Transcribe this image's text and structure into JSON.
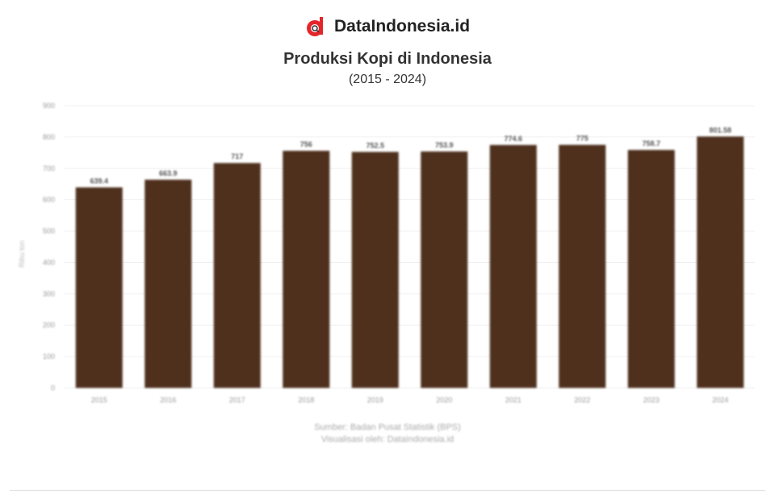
{
  "brand": {
    "name": "DataIndonesia.id",
    "accent": "#e4262b"
  },
  "chart_data": {
    "type": "bar",
    "title": "Produksi Kopi di Indonesia",
    "subtitle": "(2015 - 2024)",
    "ylabel": "Ribu ton",
    "xlabel": "",
    "categories": [
      "2015",
      "2016",
      "2017",
      "2018",
      "2019",
      "2020",
      "2021",
      "2022",
      "2023",
      "2024"
    ],
    "values": [
      639.4,
      663.9,
      717,
      756,
      752.5,
      753.9,
      774.6,
      775,
      758.7,
      801.58
    ],
    "ylim": [
      0,
      900
    ],
    "yticks": [
      0,
      100,
      200,
      300,
      400,
      500,
      600,
      700,
      800,
      900
    ],
    "grid": true,
    "bar_color": "#4e301d",
    "source": [
      "Sumber: Badan Pusat Statistik (BPS)",
      "Visualisasi oleh: DataIndonesia.id"
    ]
  }
}
